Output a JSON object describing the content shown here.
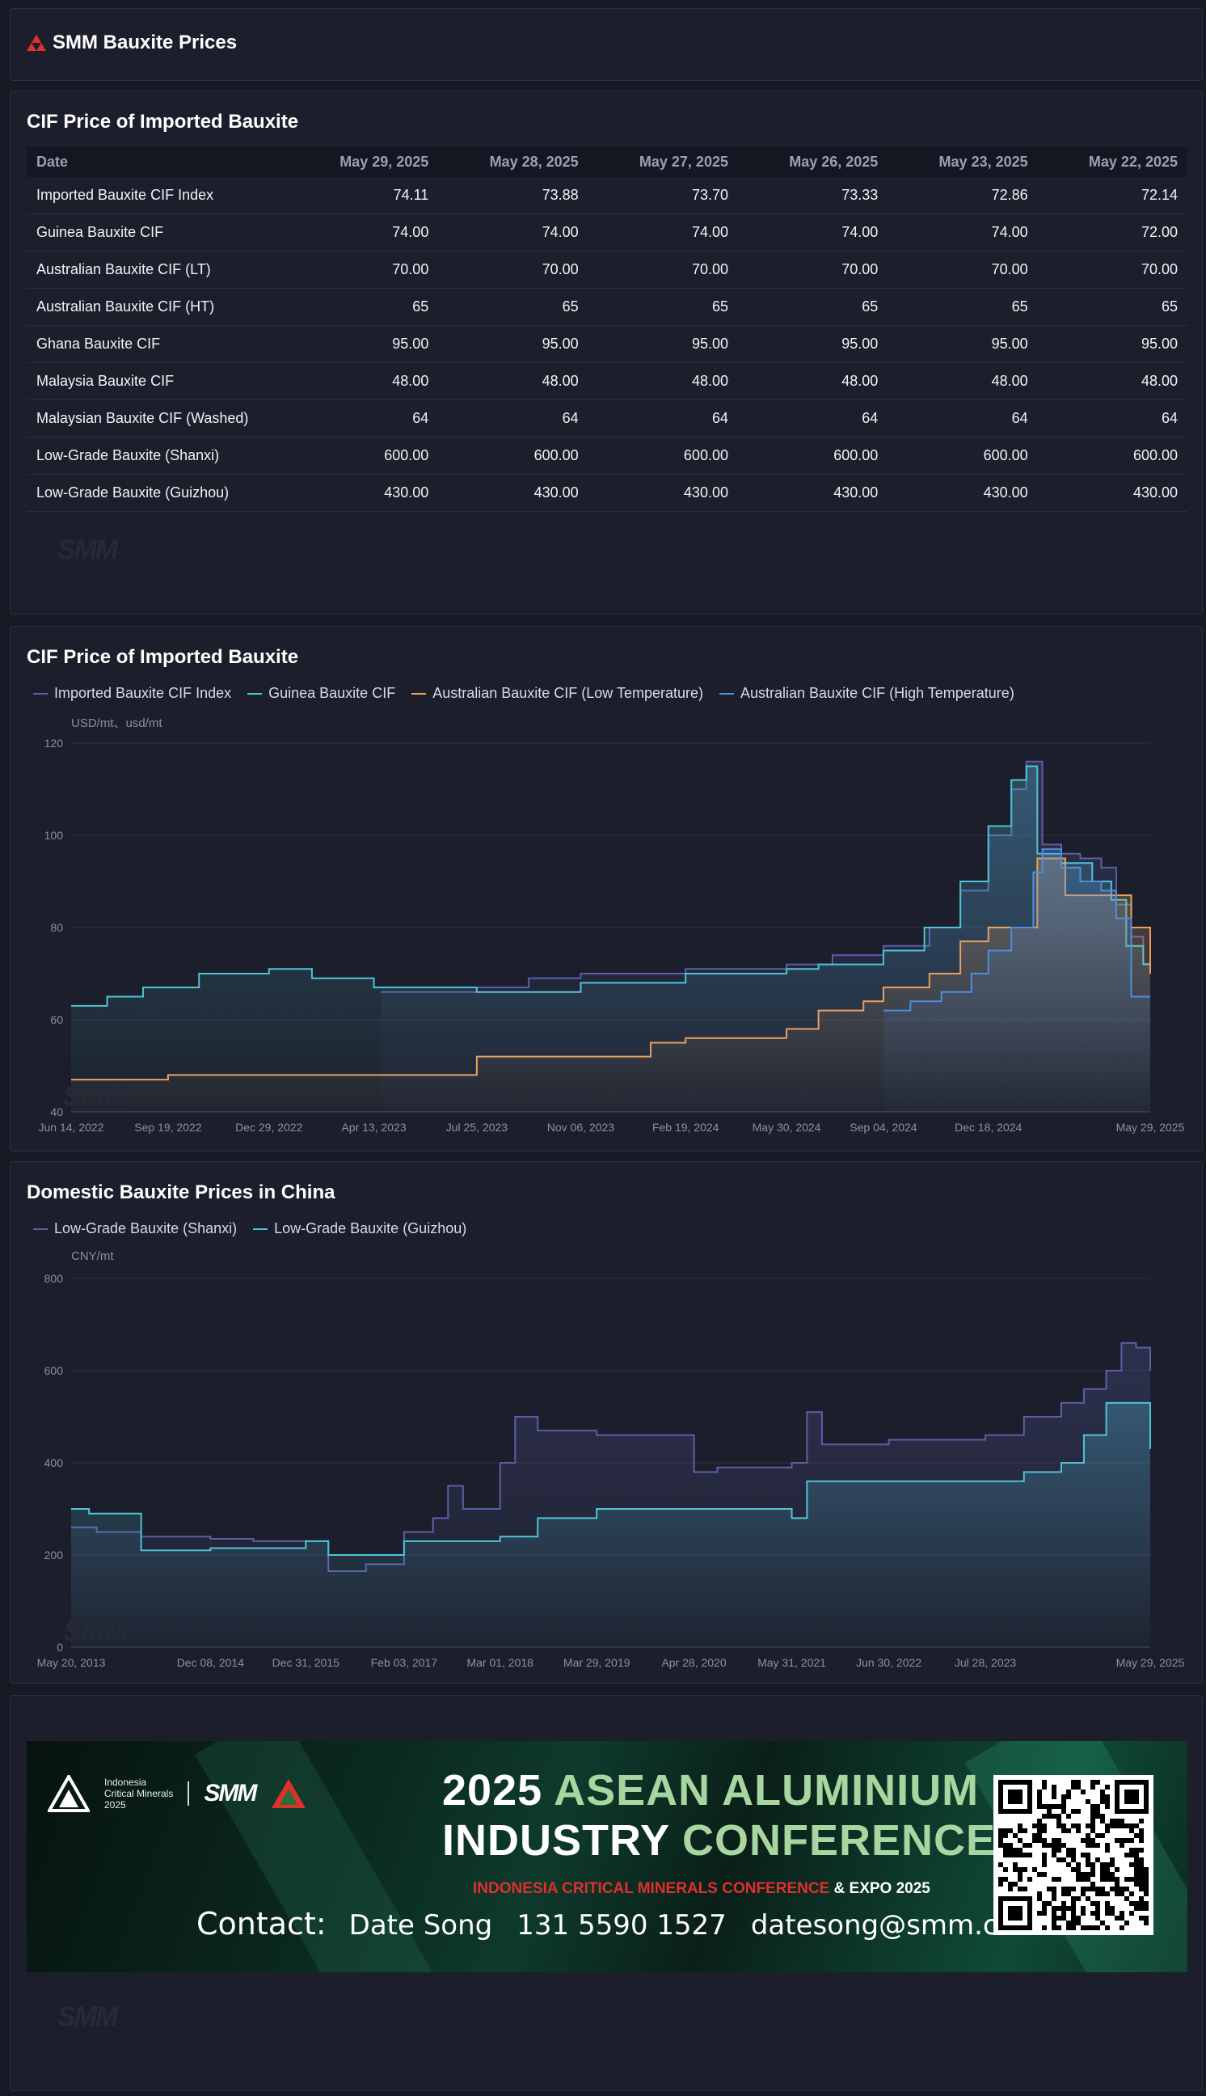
{
  "app": {
    "title": "SMM Bauxite Prices",
    "brand_color": "#e0302b"
  },
  "table_panel": {
    "title": "CIF Price of Imported Bauxite",
    "columns": [
      "Date",
      "May 29, 2025",
      "May 28, 2025",
      "May 27, 2025",
      "May 26, 2025",
      "May 23, 2025",
      "May 22, 2025"
    ],
    "rows": [
      {
        "name": "Imported Bauxite CIF Index",
        "values": [
          "74.11",
          "73.88",
          "73.70",
          "73.33",
          "72.86",
          "72.14"
        ]
      },
      {
        "name": "Guinea Bauxite CIF",
        "values": [
          "74.00",
          "74.00",
          "74.00",
          "74.00",
          "74.00",
          "72.00"
        ]
      },
      {
        "name": "Australian Bauxite CIF (LT)",
        "values": [
          "70.00",
          "70.00",
          "70.00",
          "70.00",
          "70.00",
          "70.00"
        ]
      },
      {
        "name": "Australian Bauxite CIF (HT)",
        "values": [
          "65",
          "65",
          "65",
          "65",
          "65",
          "65"
        ]
      },
      {
        "name": "Ghana Bauxite CIF",
        "values": [
          "95.00",
          "95.00",
          "95.00",
          "95.00",
          "95.00",
          "95.00"
        ]
      },
      {
        "name": "Malaysia Bauxite CIF",
        "values": [
          "48.00",
          "48.00",
          "48.00",
          "48.00",
          "48.00",
          "48.00"
        ]
      },
      {
        "name": "Malaysian Bauxite CIF (Washed)",
        "values": [
          "64",
          "64",
          "64",
          "64",
          "64",
          "64"
        ]
      },
      {
        "name": "Low-Grade Bauxite (Shanxi)",
        "values": [
          "600.00",
          "600.00",
          "600.00",
          "600.00",
          "600.00",
          "600.00"
        ]
      },
      {
        "name": "Low-Grade Bauxite (Guizhou)",
        "values": [
          "430.00",
          "430.00",
          "430.00",
          "430.00",
          "430.00",
          "430.00"
        ]
      }
    ]
  },
  "chart_data": [
    {
      "type": "line",
      "title": "CIF Price of Imported Bauxite",
      "unit_label": "USD/mt、usd/mt",
      "ylim": [
        40,
        120
      ],
      "yticks": [
        40,
        60,
        80,
        100,
        120
      ],
      "xlabels": [
        "Jun 14, 2022",
        "Sep 19, 2022",
        "Dec 29, 2022",
        "Apr 13, 2023",
        "Jul 25, 2023",
        "Nov 06, 2023",
        "Feb 19, 2024",
        "May 30, 2024",
        "Sep 04, 2024",
        "Dec 18, 2024",
        "May 29, 2025"
      ],
      "grid": true,
      "legend_position": "top-left",
      "series": [
        {
          "name": "Imported Bauxite CIF Index",
          "color": "#5a5fa8",
          "x": [
            "2023-04-20",
            "2023-07-25",
            "2023-09-15",
            "2023-11-06",
            "2024-02-19",
            "2024-05-30",
            "2024-07-15",
            "2024-09-04",
            "2024-10-20",
            "2024-11-20",
            "2024-12-18",
            "2025-01-10",
            "2025-01-25",
            "2025-02-10",
            "2025-03-01",
            "2025-03-20",
            "2025-04-10",
            "2025-04-25",
            "2025-05-10",
            "2025-05-22",
            "2025-05-29"
          ],
          "y": [
            66,
            67,
            69,
            70,
            71,
            72,
            74,
            76,
            80,
            88,
            100,
            110,
            116,
            98,
            96,
            95,
            93,
            85,
            78,
            72.14,
            74.11
          ]
        },
        {
          "name": "Guinea Bauxite CIF",
          "color": "#4ec3d8",
          "x": [
            "2022-06-14",
            "2022-07-20",
            "2022-08-25",
            "2022-10-20",
            "2022-12-29",
            "2023-02-10",
            "2023-04-13",
            "2023-07-25",
            "2023-11-06",
            "2024-02-19",
            "2024-05-30",
            "2024-07-01",
            "2024-09-04",
            "2024-10-15",
            "2024-11-20",
            "2024-12-18",
            "2025-01-10",
            "2025-01-25",
            "2025-02-05",
            "2025-03-01",
            "2025-04-01",
            "2025-04-20",
            "2025-05-05",
            "2025-05-22",
            "2025-05-29"
          ],
          "y": [
            63,
            65,
            67,
            70,
            71,
            69,
            67,
            66,
            68,
            70,
            71,
            72,
            75,
            80,
            90,
            102,
            112,
            115,
            96,
            94,
            90,
            86,
            76,
            72,
            74
          ]
        },
        {
          "name": "Australian Bauxite CIF (Low Temperature)",
          "color": "#e9a15f",
          "x": [
            "2022-06-14",
            "2022-09-19",
            "2023-04-13",
            "2023-07-25",
            "2023-11-06",
            "2024-01-15",
            "2024-02-19",
            "2024-05-30",
            "2024-07-01",
            "2024-08-15",
            "2024-09-04",
            "2024-10-20",
            "2024-11-20",
            "2024-12-18",
            "2025-01-25",
            "2025-02-05",
            "2025-03-05",
            "2025-04-10",
            "2025-05-10",
            "2025-05-29"
          ],
          "y": [
            47,
            48,
            48,
            52,
            52,
            55,
            56,
            58,
            62,
            64,
            67,
            70,
            77,
            80,
            80,
            95,
            87,
            87,
            80,
            70
          ]
        },
        {
          "name": "Australian Bauxite CIF (High Temperature)",
          "color": "#4f8edc",
          "x": [
            "2024-09-04",
            "2024-10-01",
            "2024-11-01",
            "2024-12-01",
            "2024-12-18",
            "2025-01-10",
            "2025-02-01",
            "2025-02-10",
            "2025-03-01",
            "2025-03-20",
            "2025-04-10",
            "2025-04-25",
            "2025-05-10",
            "2025-05-29"
          ],
          "y": [
            62,
            64,
            66,
            70,
            75,
            80,
            92,
            97,
            93,
            90,
            88,
            82,
            65,
            65
          ]
        }
      ]
    },
    {
      "type": "line",
      "title": "Domestic Bauxite Prices in China",
      "unit_label": "CNY/mt",
      "ylim": [
        0,
        800
      ],
      "yticks": [
        0,
        200,
        400,
        600,
        800
      ],
      "xlabels": [
        "May 20, 2013",
        "Dec 08, 2014",
        "Dec 31, 2015",
        "Feb 03, 2017",
        "Mar 01, 2018",
        "Mar 29, 2019",
        "Apr 28, 2020",
        "May 31, 2021",
        "Jun 30, 2022",
        "Jul 28, 2023",
        "May 29, 2025"
      ],
      "grid": true,
      "legend_position": "top-left",
      "series": [
        {
          "name": "Low-Grade Bauxite (Shanxi)",
          "color": "#5a5fa8",
          "x": [
            "2013-05-20",
            "2013-09-01",
            "2014-03-01",
            "2014-12-08",
            "2015-06-01",
            "2015-12-31",
            "2016-04-01",
            "2016-09-01",
            "2017-02-03",
            "2017-06-01",
            "2017-08-01",
            "2017-10-01",
            "2018-03-01",
            "2018-05-01",
            "2018-08-01",
            "2019-03-29",
            "2019-07-01",
            "2020-01-01",
            "2020-04-28",
            "2020-08-01",
            "2021-05-31",
            "2021-08-01",
            "2021-10-01",
            "2022-06-30",
            "2023-07-28",
            "2024-01-01",
            "2024-06-01",
            "2024-09-01",
            "2024-12-01",
            "2025-02-01",
            "2025-04-01",
            "2025-05-29"
          ],
          "y": [
            260,
            250,
            240,
            235,
            230,
            230,
            165,
            180,
            250,
            280,
            350,
            300,
            400,
            500,
            470,
            460,
            460,
            460,
            380,
            390,
            400,
            510,
            440,
            450,
            460,
            500,
            530,
            560,
            600,
            660,
            650,
            600
          ]
        },
        {
          "name": "Low-Grade Bauxite (Guizhou)",
          "color": "#4ec3d8",
          "x": [
            "2013-05-20",
            "2013-08-01",
            "2014-03-01",
            "2014-12-08",
            "2015-12-31",
            "2016-04-01",
            "2016-09-01",
            "2017-02-03",
            "2018-03-01",
            "2018-08-01",
            "2019-03-29",
            "2020-04-28",
            "2021-05-31",
            "2021-08-01",
            "2022-06-30",
            "2023-07-28",
            "2024-01-01",
            "2024-06-01",
            "2024-09-01",
            "2024-12-01",
            "2025-04-01",
            "2025-05-29"
          ],
          "y": [
            300,
            290,
            210,
            215,
            230,
            200,
            200,
            230,
            240,
            280,
            300,
            300,
            280,
            360,
            360,
            360,
            380,
            400,
            460,
            530,
            530,
            430
          ]
        }
      ]
    }
  ],
  "banner": {
    "logo_line1": "Indonesia",
    "logo_line2": "Critical Minerals",
    "logo_line3": "2025",
    "smm_logo": "SMM",
    "title_line1_prefix": "2025 ",
    "title_line1_green": "ASEAN ALUMINIUM",
    "title_line2_white": "INDUSTRY ",
    "title_line2_green": "CONFERENCE",
    "subtitle_red": "INDONESIA CRITICAL MINERALS CONFERENCE",
    "subtitle_white": "& EXPO 2025",
    "contact_label": "Contact:",
    "contact_name": "Date Song",
    "contact_phone": "131 5590 1527",
    "contact_email": "datesong@smm.cn"
  },
  "watermark_text": "SMM"
}
